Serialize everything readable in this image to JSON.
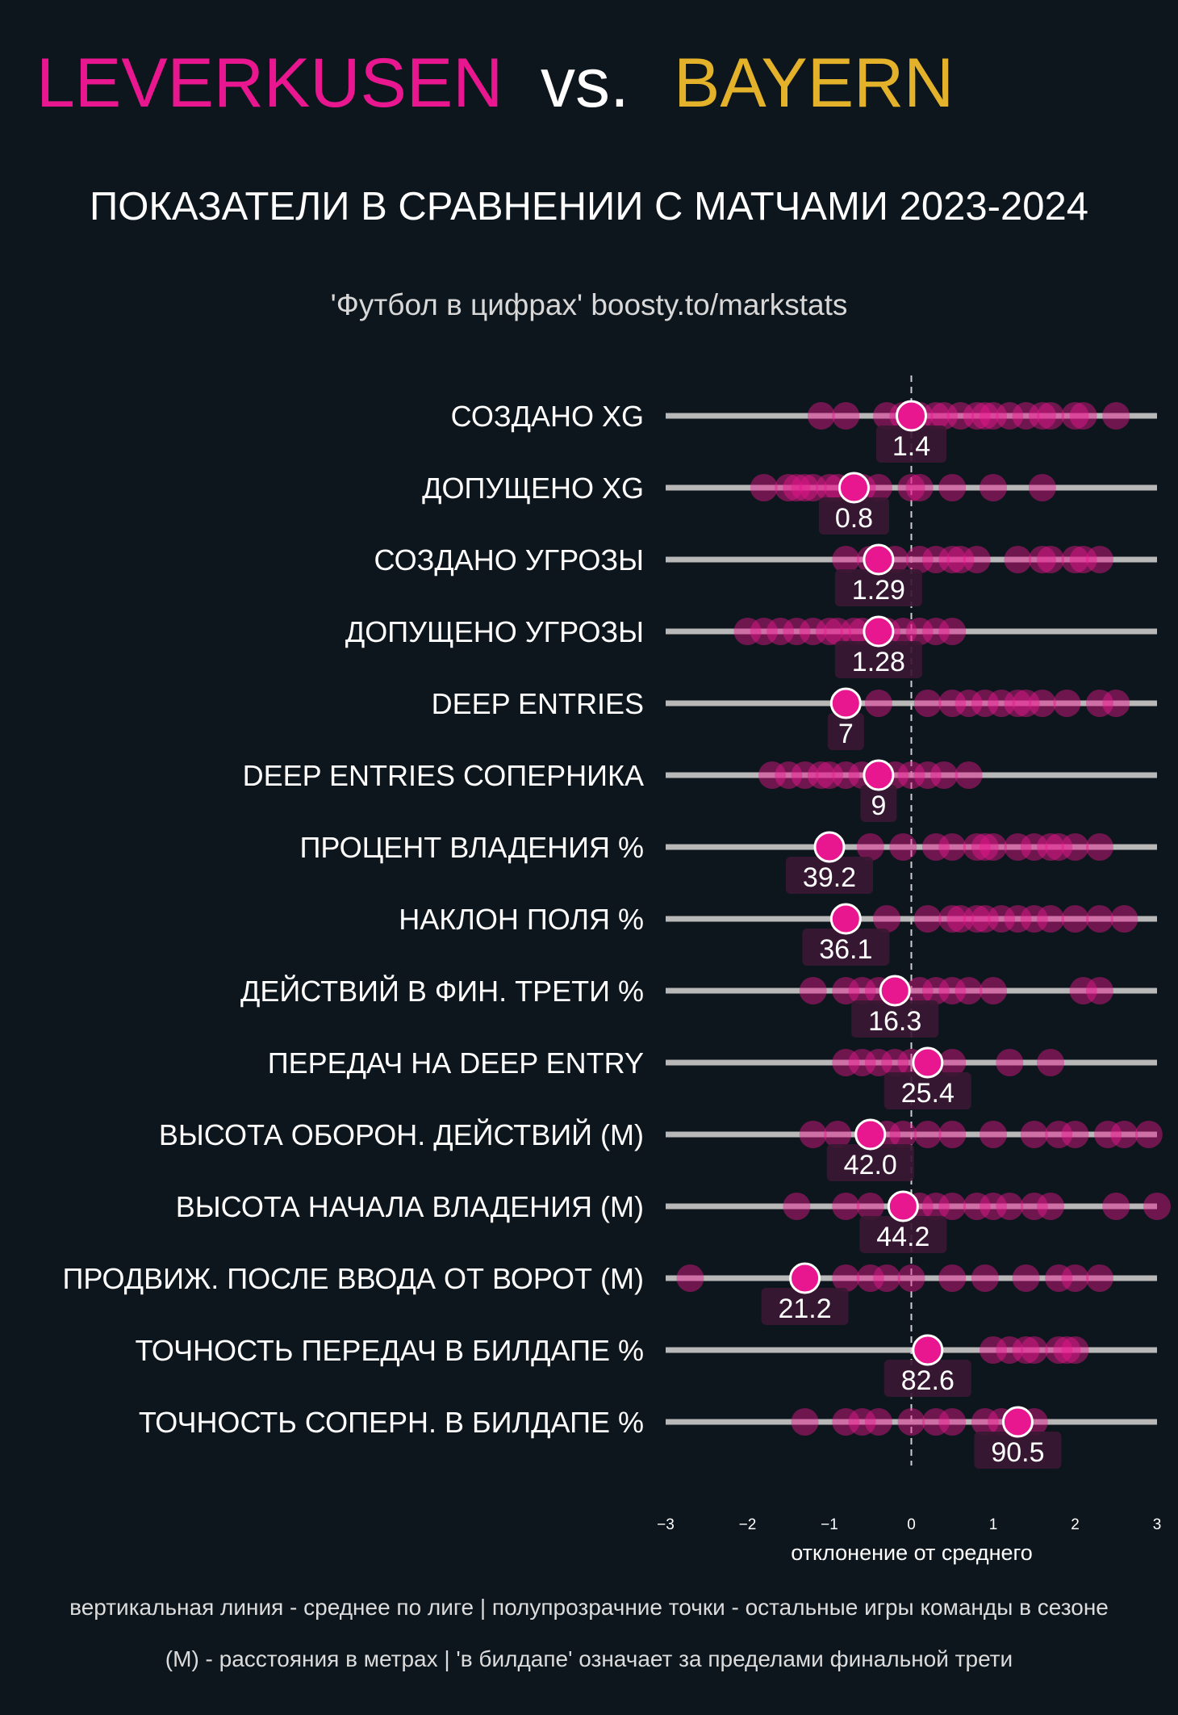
{
  "header": {
    "team1": "LEVERKUSEN",
    "vs": "vs.",
    "team2": "BAYERN",
    "subtitle": "ПОКАЗАТЕЛИ В СРАВНЕНИИ С МАТЧАМИ 2023-2024",
    "source": "'Футбол в цифрах' boosty.to/markstats"
  },
  "colors": {
    "background": "#0e161d",
    "team1": "#e8168f",
    "team2": "#e3b22a",
    "track": "#b8b8b8",
    "point": "#e8168f",
    "label_box": "#3a1833"
  },
  "footer": {
    "line1": "вертикальная линия - среднее по лиге  |  полупрозрачние точки - остальные игры команды в сезоне",
    "line2": "(М) - расстояния в метрах | 'в билдапе' означает за пределами финальной трети"
  },
  "chart_data": {
    "type": "scatter",
    "x_axis_label": "отклонение от среднего",
    "xlim": [
      -3,
      3
    ],
    "x_ticks": [
      {
        "value": -3,
        "label": "−3"
      },
      {
        "value": -2,
        "label": "−2"
      },
      {
        "value": -1,
        "label": "−1"
      },
      {
        "value": 0,
        "label": "0"
      },
      {
        "value": 1,
        "label": "1"
      },
      {
        "value": 2,
        "label": "2"
      },
      {
        "value": 3,
        "label": "3"
      }
    ],
    "reference_line_x": 0,
    "metrics": [
      {
        "name": "СОЗДАНО XG",
        "match_x": 0.0,
        "match_value": "1.4",
        "season_x": [
          -1.1,
          -0.8,
          -0.3,
          -0.1,
          0.1,
          0.3,
          0.4,
          0.6,
          0.8,
          0.9,
          1.0,
          1.2,
          1.4,
          1.6,
          1.7,
          2.0,
          2.1,
          2.5
        ]
      },
      {
        "name": "ДОПУЩЕНО XG",
        "match_x": -0.7,
        "match_value": "0.8",
        "season_x": [
          -1.8,
          -1.5,
          -1.4,
          -1.3,
          -1.2,
          -1.0,
          -0.9,
          -0.6,
          -0.4,
          0.0,
          0.1,
          0.5,
          1.0,
          1.6
        ]
      },
      {
        "name": "СОЗДАНО УГРОЗЫ",
        "match_x": -0.4,
        "match_value": "1.29",
        "season_x": [
          -0.8,
          -0.5,
          -0.2,
          0.1,
          0.3,
          0.5,
          0.6,
          0.8,
          1.3,
          1.6,
          1.7,
          2.0,
          2.1,
          2.3
        ]
      },
      {
        "name": "ДОПУЩЕНО УГРОЗЫ",
        "match_x": -0.4,
        "match_value": "1.28",
        "season_x": [
          -2.0,
          -1.8,
          -1.6,
          -1.4,
          -1.2,
          -1.0,
          -0.9,
          -0.7,
          -0.6,
          -0.3,
          -0.1,
          0.1,
          0.3,
          0.5
        ]
      },
      {
        "name": "DEEP ENTRIES",
        "match_x": -0.8,
        "match_value": "7",
        "season_x": [
          -0.4,
          0.2,
          0.5,
          0.7,
          0.9,
          1.1,
          1.3,
          1.4,
          1.6,
          1.9,
          2.3,
          2.5
        ]
      },
      {
        "name": "DEEP ENTRIES СОПЕРНИКА",
        "match_x": -0.4,
        "match_value": "9",
        "season_x": [
          -1.7,
          -1.5,
          -1.3,
          -1.1,
          -1.0,
          -0.8,
          -0.6,
          -0.2,
          0.0,
          0.2,
          0.4,
          0.7
        ]
      },
      {
        "name": "ПРОЦЕНТ ВЛАДЕНИЯ %",
        "match_x": -1.0,
        "match_value": "39.2",
        "season_x": [
          -0.5,
          -0.1,
          0.3,
          0.5,
          0.8,
          0.9,
          1.0,
          1.3,
          1.5,
          1.7,
          1.8,
          2.0,
          2.3
        ]
      },
      {
        "name": "НАКЛОН ПОЛЯ %",
        "match_x": -0.8,
        "match_value": "36.1",
        "season_x": [
          -0.3,
          0.2,
          0.5,
          0.6,
          0.8,
          0.9,
          1.1,
          1.3,
          1.5,
          1.7,
          2.0,
          2.3,
          2.6
        ]
      },
      {
        "name": "ДЕЙСТВИЙ В ФИН. ТРЕТИ %",
        "match_x": -0.2,
        "match_value": "16.3",
        "season_x": [
          -1.2,
          -0.8,
          -0.6,
          -0.4,
          0.1,
          0.3,
          0.5,
          0.7,
          1.0,
          2.1,
          2.3
        ]
      },
      {
        "name": "ПЕРЕДАЧ НА DEEP ENTRY",
        "match_x": 0.2,
        "match_value": "25.4",
        "season_x": [
          -0.8,
          -0.6,
          -0.4,
          -0.2,
          0.0,
          0.5,
          1.2,
          1.7
        ]
      },
      {
        "name": "ВЫСОТА ОБОРОН. ДЕЙСТВИЙ (М)",
        "match_x": -0.5,
        "match_value": "42.0",
        "season_x": [
          -1.2,
          -0.9,
          -0.3,
          -0.1,
          0.2,
          0.5,
          1.0,
          1.5,
          1.8,
          2.0,
          2.4,
          2.6,
          2.9
        ]
      },
      {
        "name": "ВЫСОТА НАЧАЛА ВЛАДЕНИЯ (М)",
        "match_x": -0.1,
        "match_value": "44.2",
        "season_x": [
          -1.4,
          -0.8,
          -0.5,
          0.1,
          0.3,
          0.5,
          0.8,
          1.0,
          1.2,
          1.5,
          1.7,
          2.5,
          3.0
        ]
      },
      {
        "name": "ПРОДВИЖ. ПОСЛЕ ВВОДА ОТ ВОРОТ (М)",
        "match_x": -1.3,
        "match_value": "21.2",
        "season_x": [
          -2.7,
          -0.8,
          -0.5,
          -0.3,
          0.0,
          0.5,
          0.9,
          1.4,
          1.8,
          2.0,
          2.3
        ]
      },
      {
        "name": "ТОЧНОСТЬ ПЕРЕДАЧ В БИЛДАПЕ %",
        "match_x": 0.2,
        "match_value": "82.6",
        "season_x": [
          1.0,
          1.2,
          1.4,
          1.5,
          1.8,
          1.9,
          2.0
        ]
      },
      {
        "name": "ТОЧНОСТЬ СОПЕРН. В БИЛДАПЕ %",
        "match_x": 1.3,
        "match_value": "90.5",
        "season_x": [
          -1.3,
          -0.8,
          -0.6,
          -0.4,
          0.0,
          0.3,
          0.5,
          0.9,
          1.1,
          1.5
        ]
      }
    ]
  }
}
